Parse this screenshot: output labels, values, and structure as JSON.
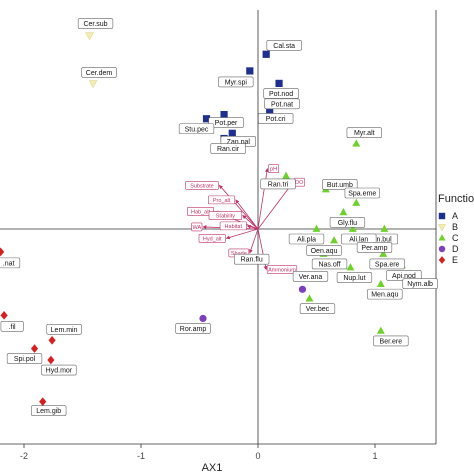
{
  "chart_data": {
    "type": "scatter",
    "xlabel": "AX1",
    "ylabel": "",
    "xlim": [
      -2.2,
      1.6
    ],
    "ylim": [
      -2.1,
      2.1
    ],
    "x_ticks": [
      -2,
      -1,
      0,
      1
    ],
    "x_tick_labels": [
      "-2",
      "-1",
      "0",
      "1"
    ],
    "grid": false,
    "legend": {
      "title": "Functio",
      "placement": "right",
      "entries": [
        {
          "label": "A",
          "color": "#1f2f8f",
          "shape": "square"
        },
        {
          "label": "B",
          "color": "#f3edb0",
          "shape": "triangle-down"
        },
        {
          "label": "C",
          "color": "#6fd22b",
          "shape": "triangle"
        },
        {
          "label": "D",
          "color": "#7b3fbf",
          "shape": "circle"
        },
        {
          "label": "E",
          "color": "#d62020",
          "shape": "diamond"
        }
      ]
    },
    "series": [
      {
        "name": "A",
        "points": [
          {
            "label": "Cal.sta",
            "x": 0.07,
            "y": 1.68
          },
          {
            "label": "Myr.spi",
            "x": -0.07,
            "y": 1.52
          },
          {
            "label": "Pot.nod",
            "x": 0.18,
            "y": 1.4
          },
          {
            "label": "Pot.nat",
            "x": 0.12,
            "y": 1.3
          },
          {
            "label": "Pot.cri",
            "x": 0.1,
            "y": 1.14
          },
          {
            "label": "Pot.per",
            "x": -0.29,
            "y": 1.1
          },
          {
            "label": "Stu.pec",
            "x": -0.44,
            "y": 1.06
          },
          {
            "label": "Zan.pal",
            "x": -0.22,
            "y": 0.92
          },
          {
            "label": "Ran.cir",
            "x": -0.29,
            "y": 0.87
          }
        ]
      },
      {
        "name": "B",
        "points": [
          {
            "label": "Cer.sub",
            "x": -1.44,
            "y": 1.86
          },
          {
            "label": "Cer.dem",
            "x": -1.41,
            "y": 1.4
          }
        ]
      },
      {
        "name": "C",
        "points": [
          {
            "label": "Myr.alt",
            "x": 0.84,
            "y": 0.82
          },
          {
            "label": "Ran.tri",
            "x": 0.24,
            "y": 0.51
          },
          {
            "label": "But.umb",
            "x": 0.58,
            "y": 0.38
          },
          {
            "label": "Spa.eme",
            "x": 0.84,
            "y": 0.25
          },
          {
            "label": "Gly.flu",
            "x": 0.73,
            "y": 0.16
          },
          {
            "label": "Jun.bul",
            "x": 1.08,
            "y": 0.0
          },
          {
            "label": "Ali.pla",
            "x": 0.5,
            "y": 0.0
          },
          {
            "label": "Ali.lan",
            "x": 0.81,
            "y": 0.0
          },
          {
            "label": "Oen.aqu",
            "x": 0.65,
            "y": -0.11
          },
          {
            "label": "Per.amp",
            "x": 0.91,
            "y": -0.1
          },
          {
            "label": "Spa.ere",
            "x": 1.07,
            "y": -0.24
          },
          {
            "label": "Nas.off",
            "x": 0.56,
            "y": -0.24
          },
          {
            "label": "Nup.lut",
            "x": 0.79,
            "y": -0.37
          },
          {
            "label": "Api.nod",
            "x": 1.23,
            "y": -0.35
          },
          {
            "label": "Men.aqu",
            "x": 1.05,
            "y": -0.53
          },
          {
            "label": "Nym.alb",
            "x": 1.3,
            "y": -0.43
          },
          {
            "label": "Ver.bec",
            "x": 0.44,
            "y": -0.67
          },
          {
            "label": "Ber.ere",
            "x": 1.05,
            "y": -0.98
          }
        ]
      },
      {
        "name": "D",
        "points": [
          {
            "label": "Ver.ana",
            "x": 0.38,
            "y": -0.58
          },
          {
            "label": "Ran.flu",
            "x": -0.02,
            "y": -0.3
          },
          {
            "label": "Ror.amp",
            "x": -0.47,
            "y": -0.86
          }
        ]
      },
      {
        "name": "E",
        "points": [
          {
            "label": ".nat",
            "x": -2.2,
            "y": -0.22
          },
          {
            "label": ".fil",
            "x": -2.17,
            "y": -0.83
          },
          {
            "label": "Spi.pol",
            "x": -1.91,
            "y": -1.15
          },
          {
            "label": "Lem.min",
            "x": -1.76,
            "y": -1.07
          },
          {
            "label": "Hyd.mor",
            "x": -1.77,
            "y": -1.26
          },
          {
            "label": "Lem.gib",
            "x": -1.84,
            "y": -1.66
          }
        ]
      }
    ],
    "vectors": [
      {
        "label": "pH",
        "x": 0.08,
        "y": 0.58
      },
      {
        "label": "DO",
        "x": 0.3,
        "y": 0.45
      },
      {
        "label": "Substrate",
        "x": -0.33,
        "y": 0.42
      },
      {
        "label": "Pro_alt",
        "x": -0.19,
        "y": 0.28
      },
      {
        "label": "Hab_alt",
        "x": -0.37,
        "y": 0.17
      },
      {
        "label": "Stability",
        "x": -0.13,
        "y": 0.13
      },
      {
        "label": "WA",
        "x": -0.47,
        "y": 0.02
      },
      {
        "label": "Habitat",
        "x": -0.09,
        "y": 0.03
      },
      {
        "label": "Hyd_alt",
        "x": -0.27,
        "y": -0.09
      },
      {
        "label": "Shade",
        "x": -0.07,
        "y": -0.23
      },
      {
        "label": "Ammonium",
        "x": 0.07,
        "y": -0.39
      }
    ]
  }
}
